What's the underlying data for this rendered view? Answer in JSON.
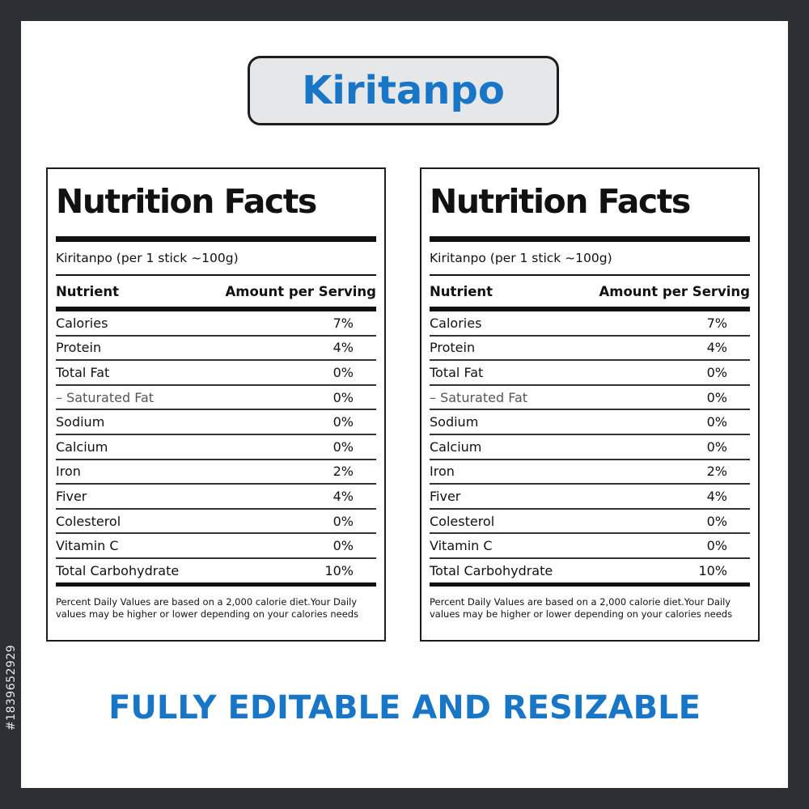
{
  "title": "Kiritanpo",
  "labels": [
    {
      "heading": "Nutrition Facts",
      "serving": "Kiritanpo (per 1 stick ~100g)",
      "header": {
        "nutrient": "Nutrient",
        "amount": "Amount per Serving"
      },
      "rows": [
        {
          "name": "Calories",
          "value": "7%"
        },
        {
          "name": "Protein",
          "value": "4%"
        },
        {
          "name": "Total Fat",
          "value": "0%"
        },
        {
          "name": "– Saturated Fat",
          "value": "0%",
          "sub": true
        },
        {
          "name": "Sodium",
          "value": "0%"
        },
        {
          "name": "Calcium",
          "value": "0%"
        },
        {
          "name": "Iron",
          "value": "2%"
        },
        {
          "name": "Fiver",
          "value": "4%"
        },
        {
          "name": "Colesterol",
          "value": "0%"
        },
        {
          "name": "Vitamin C",
          "value": "0%"
        },
        {
          "name": "Total Carbohydrate",
          "value": "10%"
        }
      ],
      "footnote": "Percent Daily Values are based on a 2,000 calorie diet.Your Daily values may be higher or lower depending on your calories needs"
    },
    {
      "heading": "Nutrition Facts",
      "serving": "Kiritanpo (per 1 stick ~100g)",
      "header": {
        "nutrient": "Nutrient",
        "amount": "Amount per Serving"
      },
      "rows": [
        {
          "name": "Calories",
          "value": "7%"
        },
        {
          "name": "Protein",
          "value": "4%"
        },
        {
          "name": "Total Fat",
          "value": "0%"
        },
        {
          "name": "– Saturated Fat",
          "value": "0%",
          "sub": true
        },
        {
          "name": "Sodium",
          "value": "0%"
        },
        {
          "name": "Calcium",
          "value": "0%"
        },
        {
          "name": "Iron",
          "value": "2%"
        },
        {
          "name": "Fiver",
          "value": "4%"
        },
        {
          "name": "Colesterol",
          "value": "0%"
        },
        {
          "name": "Vitamin C",
          "value": "0%"
        },
        {
          "name": "Total Carbohydrate",
          "value": "10%"
        }
      ],
      "footnote": "Percent Daily Values are based on a 2,000 calorie diet.Your Daily values may be higher or lower depending on your calories needs"
    }
  ],
  "tagline": "FULLY EDITABLE AND RESIZABLE",
  "stock_id": "#1839652929",
  "colors": {
    "accent": "#1976c7",
    "frame": "#2c2f33",
    "pill": "#e6e7e8"
  }
}
